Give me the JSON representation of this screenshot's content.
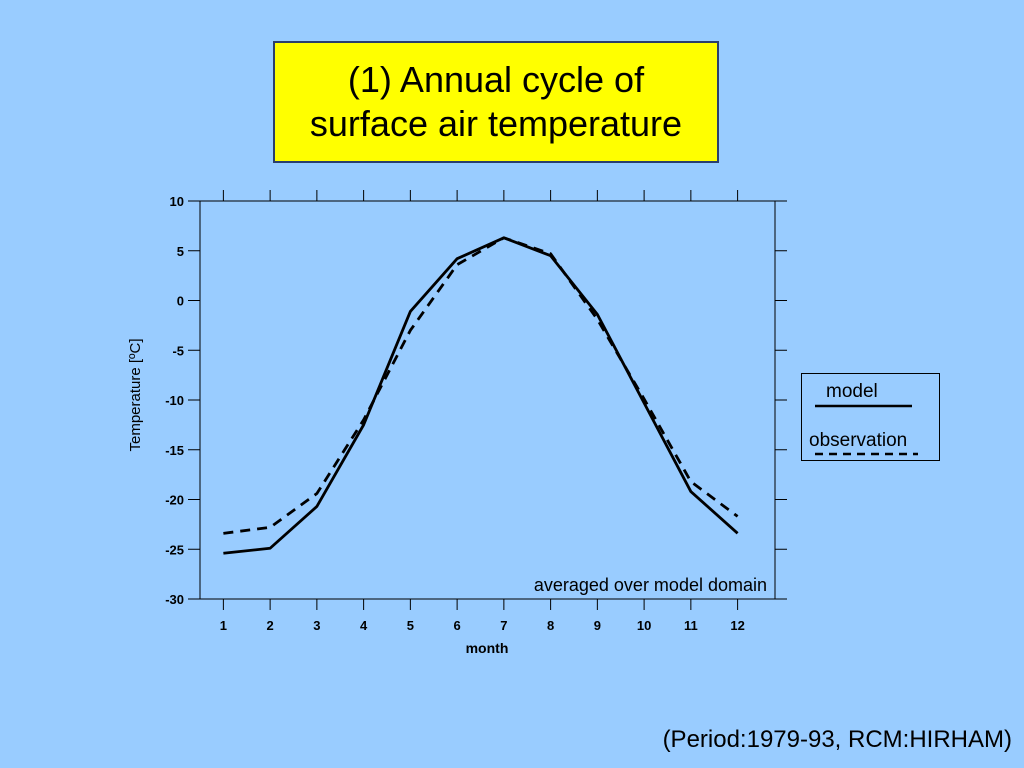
{
  "title": {
    "line1": "(1) Annual cycle of",
    "line2": "surface air temperature"
  },
  "footer": "(Period:1979-93, RCM:HIRHAM)",
  "legend": {
    "model_label": "model",
    "observation_label": "observation"
  },
  "annotation": "averaged over model domain",
  "colors": {
    "background": "#99ccff",
    "title_box": "#ffff00",
    "line": "#000000"
  },
  "chart_data": {
    "type": "line",
    "title": "(1) Annual cycle of surface air temperature",
    "xlabel": "month",
    "ylabel": "Temperature [ºC]",
    "x": [
      1,
      2,
      3,
      4,
      5,
      6,
      7,
      8,
      9,
      10,
      11,
      12
    ],
    "xlim": [
      0.5,
      12.8
    ],
    "ylim": [
      -30,
      10
    ],
    "yticks": [
      10,
      5,
      0,
      -5,
      -10,
      -15,
      -20,
      -25,
      -30
    ],
    "xticks": [
      1,
      2,
      3,
      4,
      5,
      6,
      7,
      8,
      9,
      10,
      11,
      12
    ],
    "grid": false,
    "legend_position": "right-outside",
    "series": [
      {
        "name": "model",
        "style": "solid",
        "values": [
          -25.4,
          -24.9,
          -20.7,
          -12.5,
          -1.1,
          4.2,
          6.3,
          4.5,
          -1.4,
          -10.3,
          -19.2,
          -23.4
        ]
      },
      {
        "name": "observation",
        "style": "dashed",
        "values": [
          -23.4,
          -22.8,
          -19.4,
          -12.0,
          -3.0,
          3.6,
          6.3,
          4.7,
          -1.9,
          -9.9,
          -18.2,
          -21.7
        ]
      }
    ]
  }
}
